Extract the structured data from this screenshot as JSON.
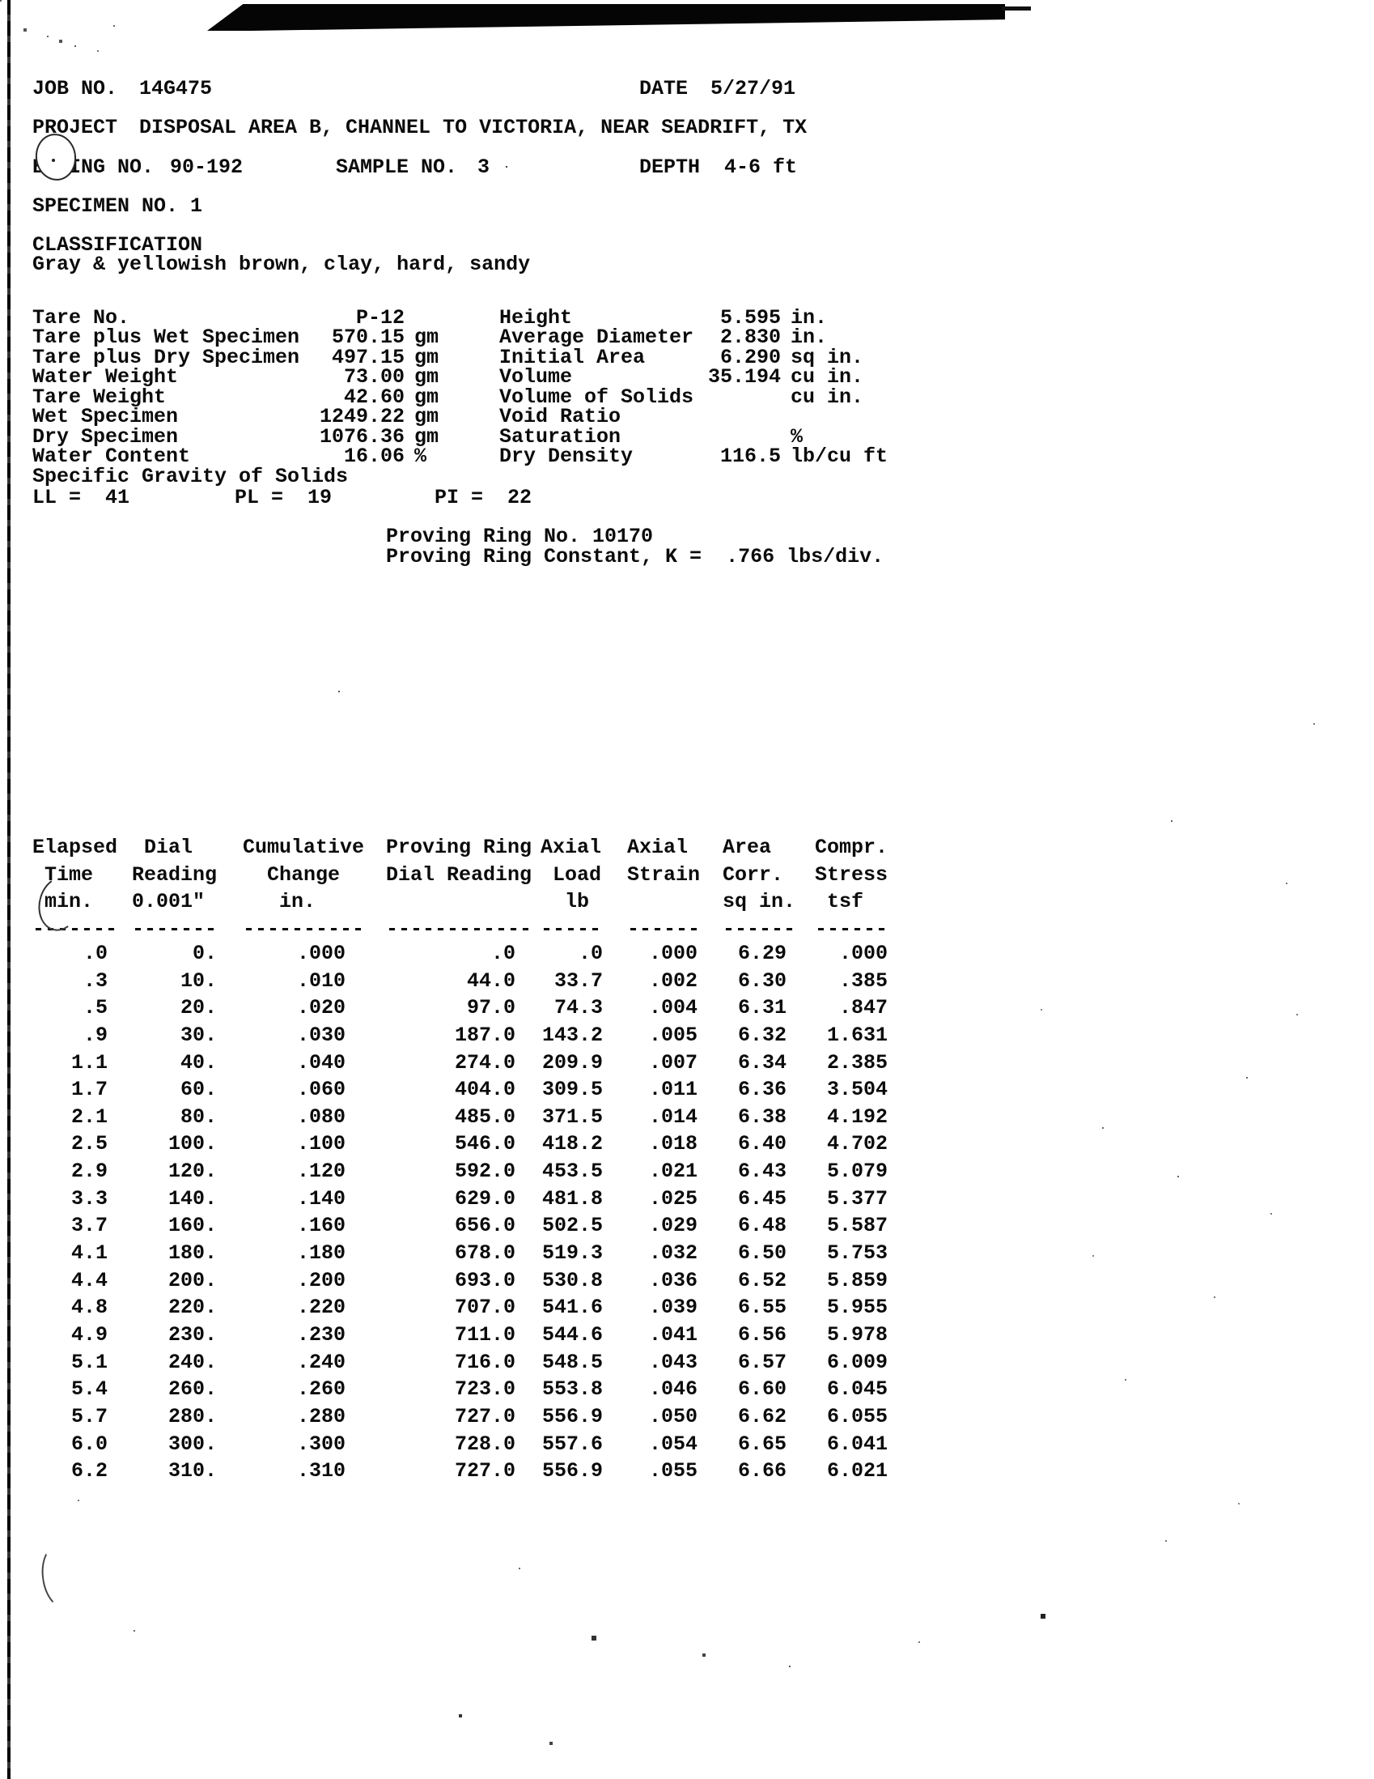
{
  "header": {
    "job_no_label": "JOB NO.",
    "job_no": "14G475",
    "date_label": "DATE",
    "date": "5/27/91",
    "project_label": "PROJECT",
    "project": "DISPOSAL AREA B, CHANNEL TO VICTORIA, NEAR SEADRIFT, TX",
    "boring_no_label": "BORING NO.",
    "boring_no": "90-192",
    "sample_no_label": "SAMPLE NO.",
    "sample_no": "3",
    "depth_label": "DEPTH",
    "depth": "4-6 ft",
    "specimen_no_label": "SPECIMEN NO.",
    "specimen_no": "1",
    "classification_label": "CLASSIFICATION",
    "classification": "Gray & yellowish brown, clay, hard, sandy"
  },
  "specimen_data": {
    "left": [
      {
        "label": "Tare No.",
        "value": "P-12",
        "unit": ""
      },
      {
        "label": "Tare plus Wet Specimen",
        "value": "570.15",
        "unit": "gm"
      },
      {
        "label": "Tare plus Dry Specimen",
        "value": "497.15",
        "unit": "gm"
      },
      {
        "label": "Water Weight",
        "value": "73.00",
        "unit": "gm"
      },
      {
        "label": "Tare Weight",
        "value": "42.60",
        "unit": "gm"
      },
      {
        "label": "Wet Specimen",
        "value": "1249.22",
        "unit": "gm"
      },
      {
        "label": "Dry Specimen",
        "value": "1076.36",
        "unit": "gm"
      },
      {
        "label": "Water Content",
        "value": "16.06",
        "unit": "%"
      },
      {
        "label": "Specific Gravity of Solids",
        "value": "",
        "unit": ""
      }
    ],
    "right": [
      {
        "label": "Height",
        "value": "5.595",
        "unit": "in."
      },
      {
        "label": "Average Diameter",
        "value": "2.830",
        "unit": "in."
      },
      {
        "label": "Initial Area",
        "value": "6.290",
        "unit": "sq in."
      },
      {
        "label": "Volume",
        "value": "35.194",
        "unit": "cu in."
      },
      {
        "label": "Volume of Solids",
        "value": "",
        "unit": "cu in."
      },
      {
        "label": "Void Ratio",
        "value": "",
        "unit": ""
      },
      {
        "label": "Saturation",
        "value": "",
        "unit": "%"
      },
      {
        "label": "Dry Density",
        "value": "116.5",
        "unit": "lb/cu ft"
      }
    ],
    "atterberg": {
      "ll": "LL =  41",
      "pl": "PL =  19",
      "pi": "PI =  22"
    }
  },
  "proving_ring": {
    "no_line": "Proving Ring No. 10170",
    "k_line": "Proving Ring Constant, K =  .766 lbs/div."
  },
  "table": {
    "columns": [
      "Elapsed\n Time\n min.\n-------",
      " Dial\nReading\n0.001\"\n-------",
      "Cumulative\n  Change\n   in.\n----------",
      "Proving Ring\nDial Reading\n\n------------",
      "Axial\n Load\n  lb\n-----",
      "Axial\nStrain\n\n------",
      "Area\nCorr.\nsq in.\n------",
      "Compr.\nStress\n tsf\n------"
    ],
    "rows": [
      [
        ".0",
        "0.",
        ".000",
        ".0",
        ".0",
        ".000",
        "6.29",
        ".000"
      ],
      [
        ".3",
        "10.",
        ".010",
        "44.0",
        "33.7",
        ".002",
        "6.30",
        ".385"
      ],
      [
        ".5",
        "20.",
        ".020",
        "97.0",
        "74.3",
        ".004",
        "6.31",
        ".847"
      ],
      [
        ".9",
        "30.",
        ".030",
        "187.0",
        "143.2",
        ".005",
        "6.32",
        "1.631"
      ],
      [
        "1.1",
        "40.",
        ".040",
        "274.0",
        "209.9",
        ".007",
        "6.34",
        "2.385"
      ],
      [
        "1.7",
        "60.",
        ".060",
        "404.0",
        "309.5",
        ".011",
        "6.36",
        "3.504"
      ],
      [
        "2.1",
        "80.",
        ".080",
        "485.0",
        "371.5",
        ".014",
        "6.38",
        "4.192"
      ],
      [
        "2.5",
        "100.",
        ".100",
        "546.0",
        "418.2",
        ".018",
        "6.40",
        "4.702"
      ],
      [
        "2.9",
        "120.",
        ".120",
        "592.0",
        "453.5",
        ".021",
        "6.43",
        "5.079"
      ],
      [
        "3.3",
        "140.",
        ".140",
        "629.0",
        "481.8",
        ".025",
        "6.45",
        "5.377"
      ],
      [
        "3.7",
        "160.",
        ".160",
        "656.0",
        "502.5",
        ".029",
        "6.48",
        "5.587"
      ],
      [
        "4.1",
        "180.",
        ".180",
        "678.0",
        "519.3",
        ".032",
        "6.50",
        "5.753"
      ],
      [
        "4.4",
        "200.",
        ".200",
        "693.0",
        "530.8",
        ".036",
        "6.52",
        "5.859"
      ],
      [
        "4.8",
        "220.",
        ".220",
        "707.0",
        "541.6",
        ".039",
        "6.55",
        "5.955"
      ],
      [
        "4.9",
        "230.",
        ".230",
        "711.0",
        "544.6",
        ".041",
        "6.56",
        "5.978"
      ],
      [
        "5.1",
        "240.",
        ".240",
        "716.0",
        "548.5",
        ".043",
        "6.57",
        "6.009"
      ],
      [
        "5.4",
        "260.",
        ".260",
        "723.0",
        "553.8",
        ".046",
        "6.60",
        "6.045"
      ],
      [
        "5.7",
        "280.",
        ".280",
        "727.0",
        "556.9",
        ".050",
        "6.62",
        "6.055"
      ],
      [
        "6.0",
        "300.",
        ".300",
        "728.0",
        "557.6",
        ".054",
        "6.65",
        "6.041"
      ],
      [
        "6.2",
        "310.",
        ".310",
        "727.0",
        "556.9",
        ".055",
        "6.66",
        "6.021"
      ]
    ]
  }
}
